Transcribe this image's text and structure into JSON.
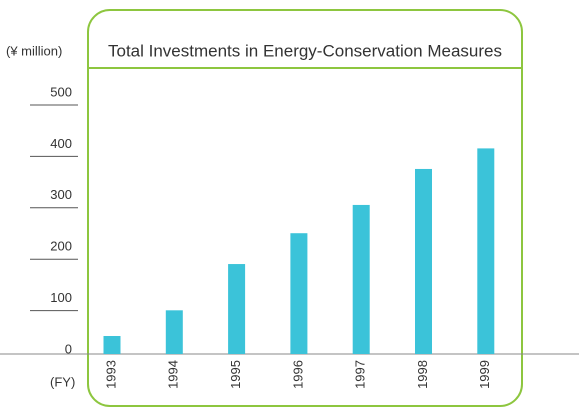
{
  "chart_data": {
    "type": "bar",
    "title": "Total Investments in Energy-Conservation Measures",
    "y_label": "(¥ million)",
    "x_label": "(FY)",
    "categories": [
      "1993",
      "1994",
      "1995",
      "1996",
      "1997",
      "1998",
      "1999"
    ],
    "values": [
      35,
      85,
      175,
      235,
      290,
      360,
      400
    ],
    "color": "#3bc3d9",
    "ylim": [
      0,
      500
    ],
    "yticks": [
      0,
      100,
      200,
      300,
      400,
      500
    ]
  }
}
